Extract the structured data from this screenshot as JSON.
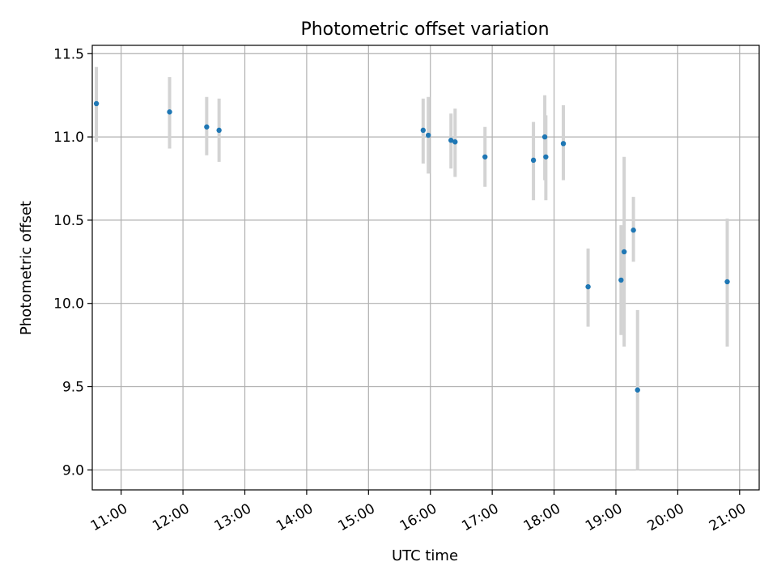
{
  "chart_data": {
    "type": "scatter",
    "title": "Photometric offset variation",
    "xlabel": "UTC time",
    "ylabel": "Photometric offset",
    "xlim": [
      "10:32",
      "21:19"
    ],
    "ylim": [
      8.88,
      11.55
    ],
    "grid": true,
    "x_tick_labels": [
      "11:00",
      "12:00",
      "13:00",
      "14:00",
      "15:00",
      "16:00",
      "17:00",
      "18:00",
      "19:00",
      "20:00",
      "21:00"
    ],
    "y_tick_labels": [
      "9.0",
      "9.5",
      "10.0",
      "10.5",
      "11.0",
      "11.5"
    ],
    "y_ticks": [
      9.0,
      9.5,
      10.0,
      10.5,
      11.0,
      11.5
    ],
    "colors": {
      "marker": "#1f77b4",
      "errorbar": "#d3d3d3",
      "grid": "#b0b0b0"
    },
    "points": [
      {
        "x": "10:36",
        "y": 11.2,
        "yerr": [
          10.97,
          11.42
        ]
      },
      {
        "x": "11:47",
        "y": 11.15,
        "yerr": [
          10.93,
          11.36
        ]
      },
      {
        "x": "12:23",
        "y": 11.06,
        "yerr": [
          10.89,
          11.24
        ]
      },
      {
        "x": "12:35",
        "y": 11.04,
        "yerr": [
          10.85,
          11.23
        ]
      },
      {
        "x": "15:53",
        "y": 11.04,
        "yerr": [
          10.84,
          11.23
        ]
      },
      {
        "x": "15:58",
        "y": 11.01,
        "yerr": [
          10.78,
          11.24
        ]
      },
      {
        "x": "16:20",
        "y": 10.98,
        "yerr": [
          10.81,
          11.14
        ]
      },
      {
        "x": "16:24",
        "y": 10.97,
        "yerr": [
          10.76,
          11.17
        ]
      },
      {
        "x": "16:53",
        "y": 10.88,
        "yerr": [
          10.7,
          11.06
        ]
      },
      {
        "x": "17:40",
        "y": 10.86,
        "yerr": [
          10.62,
          11.09
        ]
      },
      {
        "x": "17:51",
        "y": 11.0,
        "yerr": [
          10.74,
          11.25
        ]
      },
      {
        "x": "17:52",
        "y": 10.88,
        "yerr": [
          10.62,
          11.13
        ]
      },
      {
        "x": "18:09",
        "y": 10.96,
        "yerr": [
          10.74,
          11.19
        ]
      },
      {
        "x": "18:33",
        "y": 10.1,
        "yerr": [
          9.86,
          10.33
        ]
      },
      {
        "x": "19:05",
        "y": 10.14,
        "yerr": [
          9.81,
          10.47
        ]
      },
      {
        "x": "19:08",
        "y": 10.31,
        "yerr": [
          9.74,
          10.88
        ]
      },
      {
        "x": "19:17",
        "y": 10.44,
        "yerr": [
          10.25,
          10.64
        ]
      },
      {
        "x": "19:21",
        "y": 9.48,
        "yerr": [
          9.0,
          9.96
        ]
      },
      {
        "x": "20:48",
        "y": 10.13,
        "yerr": [
          9.74,
          10.51
        ]
      }
    ]
  }
}
